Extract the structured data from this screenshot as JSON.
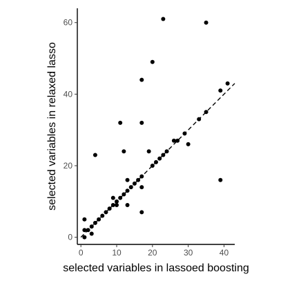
{
  "chart_data": {
    "type": "scatter",
    "xlabel": "selected variables in lassoed boosting",
    "ylabel": "selected variables in relaxed lasso",
    "xlim": [
      -1,
      43
    ],
    "ylim": [
      -2,
      64
    ],
    "xticks": [
      0,
      10,
      20,
      30,
      40
    ],
    "yticks": [
      0,
      20,
      40,
      60
    ],
    "grid": false,
    "reference_line": {
      "type": "identity",
      "style": "dashed",
      "x_range": [
        0,
        43
      ]
    },
    "points": [
      [
        1,
        0
      ],
      [
        1,
        2
      ],
      [
        1,
        5
      ],
      [
        2,
        2
      ],
      [
        3,
        3
      ],
      [
        3,
        1
      ],
      [
        4,
        4
      ],
      [
        4,
        23
      ],
      [
        5,
        5
      ],
      [
        6,
        6
      ],
      [
        7,
        7
      ],
      [
        8,
        8
      ],
      [
        9,
        9
      ],
      [
        9,
        11
      ],
      [
        10,
        10
      ],
      [
        10,
        9
      ],
      [
        11,
        11
      ],
      [
        11,
        32
      ],
      [
        12,
        12
      ],
      [
        12,
        24
      ],
      [
        13,
        13
      ],
      [
        13,
        16
      ],
      [
        13,
        9
      ],
      [
        14,
        14
      ],
      [
        15,
        15
      ],
      [
        16,
        16
      ],
      [
        17,
        17
      ],
      [
        17,
        14
      ],
      [
        17,
        32
      ],
      [
        17,
        44
      ],
      [
        17,
        7
      ],
      [
        19,
        24
      ],
      [
        20,
        20
      ],
      [
        20,
        49
      ],
      [
        21,
        21
      ],
      [
        22,
        22
      ],
      [
        23,
        23
      ],
      [
        23,
        61
      ],
      [
        24,
        24
      ],
      [
        26,
        27
      ],
      [
        27,
        27
      ],
      [
        29,
        29
      ],
      [
        30,
        26
      ],
      [
        33,
        33
      ],
      [
        35,
        35
      ],
      [
        35,
        60
      ],
      [
        39,
        41
      ],
      [
        39,
        16
      ],
      [
        41,
        43
      ]
    ]
  }
}
